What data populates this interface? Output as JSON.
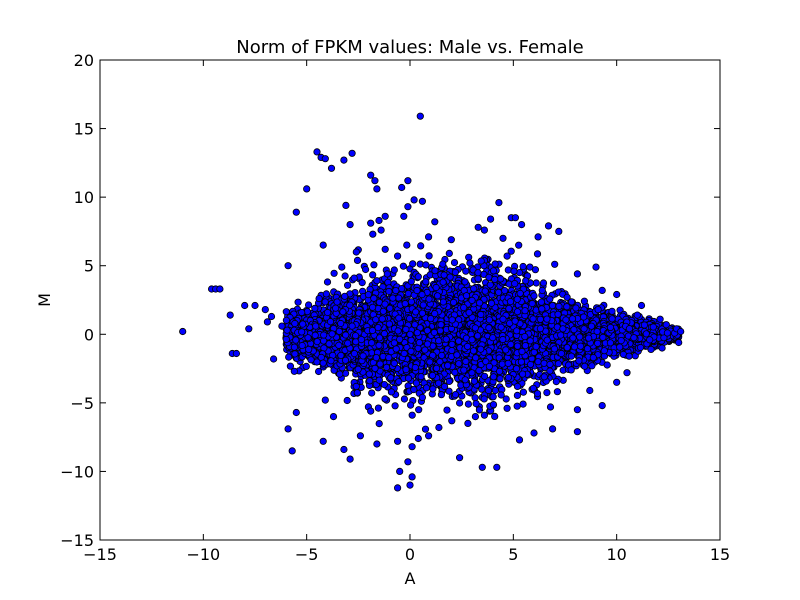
{
  "chart_data": {
    "type": "scatter",
    "title": "Norm of FPKM values: Male vs. Female",
    "xlabel": "A",
    "ylabel": "M",
    "xlim": [
      -15,
      15
    ],
    "ylim": [
      -15,
      20
    ],
    "xticks": [
      -15,
      -10,
      -5,
      0,
      5,
      10,
      15
    ],
    "yticks": [
      -15,
      -10,
      -5,
      0,
      5,
      10,
      15,
      20
    ],
    "xtick_labels": [
      "−15",
      "−10",
      "−5",
      "0",
      "5",
      "10",
      "15"
    ],
    "ytick_labels": [
      "−15",
      "−10",
      "−5",
      "0",
      "5",
      "10",
      "15",
      "20"
    ],
    "grid": false,
    "legend": "none",
    "marker_color": "#0000ff",
    "marker_edge": "#000000",
    "series": [
      {
        "points": [
          [
            0.5,
            15.9
          ],
          [
            -4.5,
            13.3
          ],
          [
            -2.8,
            13.2
          ],
          [
            -4.3,
            12.9
          ],
          [
            -4.1,
            12.8
          ],
          [
            -3.2,
            12.7
          ],
          [
            -3.8,
            12.1
          ],
          [
            -1.9,
            11.6
          ],
          [
            -1.7,
            11.2
          ],
          [
            -1.6,
            10.6
          ],
          [
            -5,
            10.6
          ],
          [
            -0.1,
            11.2
          ],
          [
            -0.4,
            10.7
          ],
          [
            0.6,
            9.7
          ],
          [
            0.2,
            9.8
          ],
          [
            -0.1,
            9.3
          ],
          [
            -1.2,
            8.6
          ],
          [
            -3.1,
            9.4
          ],
          [
            -5.5,
            8.9
          ],
          [
            -1.5,
            8.3
          ],
          [
            -1.9,
            8.1
          ],
          [
            -1.4,
            7.6
          ],
          [
            -2.9,
            8.0
          ],
          [
            -1.8,
            7.3
          ],
          [
            -0.3,
            8.6
          ],
          [
            1.2,
            8.2
          ],
          [
            0.9,
            7.1
          ],
          [
            3.9,
            8.4
          ],
          [
            4.3,
            9.6
          ],
          [
            4.9,
            8.5
          ],
          [
            5.1,
            8.5
          ],
          [
            5.4,
            8.0
          ],
          [
            6.7,
            7.9
          ],
          [
            7.2,
            7.5
          ],
          [
            6.2,
            7.1
          ],
          [
            -4.2,
            6.5
          ],
          [
            -2.6,
            6.0
          ],
          [
            -1.2,
            6.2
          ],
          [
            2.0,
            6.9
          ],
          [
            3.3,
            7.8
          ],
          [
            3.6,
            7.6
          ],
          [
            4.5,
            7.0
          ],
          [
            -9.6,
            3.3
          ],
          [
            -9.4,
            3.3
          ],
          [
            -9.2,
            3.3
          ],
          [
            -8.7,
            1.4
          ],
          [
            -8,
            2.1
          ],
          [
            -7.5,
            2.1
          ],
          [
            -7,
            1.8
          ],
          [
            -11,
            0.2
          ],
          [
            -8.6,
            -1.4
          ],
          [
            -8.4,
            -1.4
          ],
          [
            -6.7,
            1.3
          ],
          [
            -6.2,
            0.6
          ],
          [
            -5.9,
            5.0
          ],
          [
            -5.5,
            -5.7
          ],
          [
            -5.9,
            -6.9
          ],
          [
            -5.7,
            -8.5
          ],
          [
            -4.2,
            -7.8
          ],
          [
            -4.1,
            -4.8
          ],
          [
            -3.2,
            -8.4
          ],
          [
            -2.4,
            -7.4
          ],
          [
            -2.9,
            -9.1
          ],
          [
            -1.6,
            -8.0
          ],
          [
            -0.6,
            -7.8
          ],
          [
            0.4,
            -7.6
          ],
          [
            0.9,
            -7.4
          ],
          [
            0.1,
            -8.2
          ],
          [
            -0.1,
            -9.3
          ],
          [
            -0.5,
            -10.0
          ],
          [
            -0.6,
            -11.2
          ],
          [
            0.1,
            -10.4
          ],
          [
            0.0,
            -11.0
          ],
          [
            2.4,
            -9.0
          ],
          [
            3.5,
            -9.7
          ],
          [
            4.2,
            -9.7
          ],
          [
            5.3,
            -7.7
          ],
          [
            6.0,
            -7.2
          ],
          [
            6.9,
            -6.9
          ],
          [
            8.1,
            -7.1
          ],
          [
            8.1,
            -5.5
          ],
          [
            9.3,
            -5.2
          ],
          [
            10,
            -3.5
          ],
          [
            10.5,
            -2.8
          ],
          [
            9.3,
            3.2
          ],
          [
            9.0,
            4.9
          ],
          [
            10.0,
            2.9
          ],
          [
            11.2,
            2.1
          ],
          [
            12.1,
            1.1
          ],
          [
            12.9,
            0.4
          ],
          [
            13.0,
            -0.6
          ],
          [
            12.2,
            -1.0
          ],
          [
            13.1,
            0.2
          ],
          [
            0.6,
            -4.6
          ],
          [
            1.4,
            -6.8
          ],
          [
            2.8,
            -6.5
          ],
          [
            -1.9,
            -5.6
          ],
          [
            -3.7,
            -6.0
          ],
          [
            2.9,
            5.2
          ],
          [
            1.9,
            5.9
          ],
          [
            -0.6,
            5.7
          ],
          [
            -3.3,
            4.9
          ],
          [
            4.7,
            5.7
          ],
          [
            5.8,
            4.9
          ],
          [
            7.0,
            5.1
          ],
          [
            8.1,
            4.4
          ],
          [
            3.6,
            -5.9
          ],
          [
            4.7,
            -5.4
          ],
          [
            6.8,
            -5.3
          ],
          [
            8.7,
            -4.1
          ],
          [
            -6.6,
            -1.8
          ],
          [
            -5.6,
            -2.7
          ],
          [
            -4.9,
            -1.1
          ],
          [
            -7.8,
            0.4
          ],
          [
            -6.9,
            0.9
          ],
          [
            11.6,
            -0.4
          ],
          [
            12.4,
            0.7
          ],
          [
            11.0,
            1.4
          ],
          [
            10.6,
            -1.6
          ],
          [
            -2.7,
            4.1
          ],
          [
            -1.1,
            4.4
          ],
          [
            0.4,
            4.2
          ],
          [
            1.6,
            3.8
          ],
          [
            2.7,
            4.6
          ],
          [
            4.1,
            4.0
          ],
          [
            5.6,
            3.9
          ],
          [
            6.4,
            3.2
          ],
          [
            7.6,
            2.7
          ],
          [
            -2.6,
            -3.8
          ],
          [
            -0.9,
            -4.2
          ],
          [
            0.8,
            -3.9
          ],
          [
            2.2,
            -4.4
          ],
          [
            3.8,
            -4.1
          ],
          [
            5.2,
            -3.8
          ],
          [
            6.5,
            -3.1
          ],
          [
            7.8,
            -2.6
          ],
          [
            -4.4,
            2.6
          ],
          [
            -3.6,
            1.9
          ],
          [
            -4.2,
            -2.1
          ],
          [
            -3.4,
            -2.9
          ],
          [
            9.1,
            1.8
          ],
          [
            9.7,
            0.5
          ],
          [
            9.4,
            -1.2
          ],
          [
            8.8,
            -2.3
          ],
          [
            0.0,
            0.0
          ],
          [
            1.5,
            0.7
          ],
          [
            3.0,
            -0.4
          ],
          [
            4.5,
            1.1
          ],
          [
            -1.5,
            -0.8
          ],
          [
            -2.8,
            0.6
          ],
          [
            6.1,
            -0.9
          ],
          [
            7.4,
            0.4
          ]
        ]
      }
    ]
  }
}
